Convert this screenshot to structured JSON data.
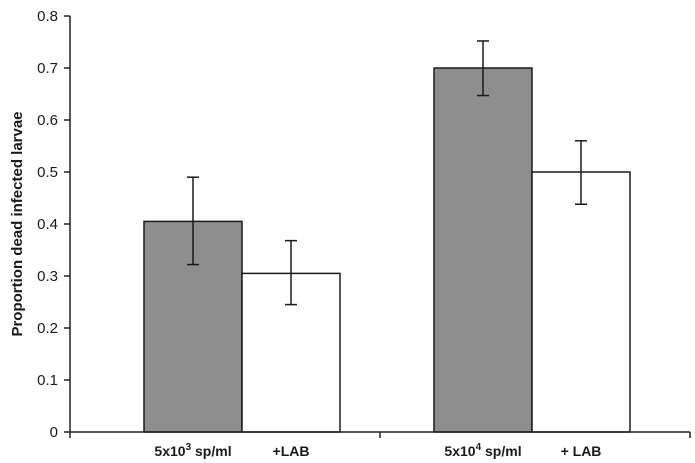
{
  "chart_data": {
    "type": "bar",
    "title": "",
    "xlabel": "",
    "ylabel": "Proportion dead infected larvae",
    "ylim": [
      0,
      0.8
    ],
    "yticks": [
      "0",
      "0.1",
      "0.2",
      "0.3",
      "0.4",
      "0.5",
      "0.6",
      "0.7",
      "0.8"
    ],
    "grid": false,
    "bars": [
      {
        "label_base": "5x10",
        "label_sup": "3",
        "label_suffix": " sp/ml",
        "value": 0.405,
        "err_low": 0.322,
        "err_high": 0.49,
        "color": "#8e8e8e"
      },
      {
        "label_base": "+LAB",
        "label_sup": "",
        "label_suffix": "",
        "value": 0.305,
        "err_low": 0.245,
        "err_high": 0.368,
        "color": "#ffffff"
      },
      {
        "label_base": "5x10",
        "label_sup": "4",
        "label_suffix": " sp/ml",
        "value": 0.7,
        "err_low": 0.647,
        "err_high": 0.752,
        "color": "#8e8e8e"
      },
      {
        "label_base": "+ LAB",
        "label_sup": "",
        "label_suffix": "",
        "value": 0.5,
        "err_low": 0.438,
        "err_high": 0.56,
        "color": "#ffffff"
      }
    ]
  }
}
